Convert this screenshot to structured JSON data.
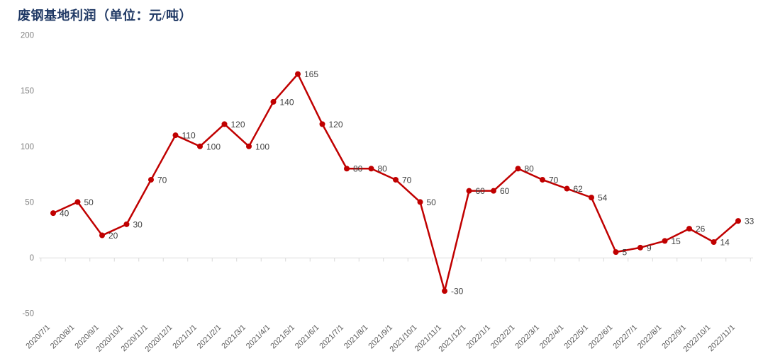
{
  "title": "废钢基地利润（单位：元/吨）",
  "colors": {
    "title": "#1f3864",
    "line": "#c00000",
    "marker": "#c00000",
    "data_label": "#404040",
    "y_tick_label": "#808080",
    "x_tick_label": "#595959",
    "axis_line": "#d9d9d9",
    "background": "#ffffff"
  },
  "chart_data": {
    "type": "line",
    "title": "废钢基地利润（单位：元/吨）",
    "xlabel": "",
    "ylabel": "",
    "categories": [
      "2020/7/1",
      "2020/8/1",
      "2020/9/1",
      "2020/10/1",
      "2020/11/1",
      "2020/12/1",
      "2021/1/1",
      "2021/2/1",
      "2021/3/1",
      "2021/4/1",
      "2021/5/1",
      "2021/6/1",
      "2021/7/1",
      "2021/8/1",
      "2021/9/1",
      "2021/10/1",
      "2021/11/1",
      "2021/12/1",
      "2022/1/1",
      "2022/2/1",
      "2022/3/1",
      "2022/4/1",
      "2022/5/1",
      "2022/6/1",
      "2022/7/1",
      "2022/8/1",
      "2022/9/1",
      "2022/10/1",
      "2022/11/1"
    ],
    "series": [
      {
        "name": "废钢基地利润",
        "values": [
          40,
          50,
          20,
          30,
          70,
          110,
          100,
          120,
          100,
          140,
          165,
          120,
          80,
          80,
          70,
          50,
          -30,
          60,
          60,
          80,
          70,
          62,
          54,
          5,
          9,
          15,
          26,
          14,
          33
        ]
      }
    ],
    "data_labels_visible": true,
    "ylim": [
      -50,
      200
    ],
    "yticks": [
      200,
      150,
      100,
      50,
      0,
      -50
    ],
    "grid": "none",
    "legend_position": "none",
    "marker": "circle"
  }
}
